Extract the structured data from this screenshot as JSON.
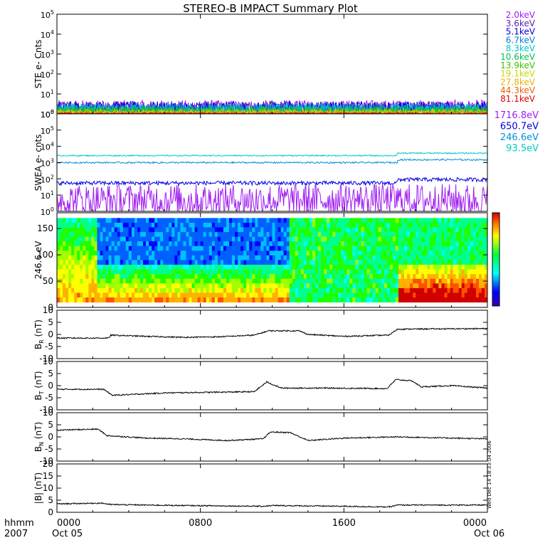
{
  "chart_data": {
    "type": "line",
    "title": "STEREO-B IMPACT Summary Plot",
    "time_axis": {
      "range": [
        "2007-10-05T00:00",
        "2007-10-06T00:00"
      ],
      "ticks": [
        {
          "t": 0,
          "label": "0000"
        },
        {
          "t": 8,
          "label": "0800"
        },
        {
          "t": 16,
          "label": "1600"
        },
        {
          "t": 24,
          "label": "0000"
        }
      ],
      "left_label_1": "hhmm",
      "left_label_2": "2007",
      "start_date": "Oct 05",
      "end_date": "Oct 06"
    },
    "side_label": "Wed Dec 14 18:33:04 2006",
    "panels": [
      {
        "id": "ste",
        "ylabel": "STE e- Cnts",
        "scale": "log",
        "ylim": [
          1,
          100000
        ],
        "y_ticks": [
          1,
          10,
          100,
          1000,
          10000,
          100000
        ],
        "series": [
          {
            "name": "2.0keV",
            "color": "#a020f0",
            "level": 2.2,
            "noise": 0.35
          },
          {
            "name": "3.6keV",
            "color": "#5a1fb0",
            "level": 2.0,
            "noise": 0.35
          },
          {
            "name": "5.1keV",
            "color": "#0000e0",
            "level": 1.9,
            "noise": 0.35
          },
          {
            "name": "6.7keV",
            "color": "#0080e0",
            "level": 1.7,
            "noise": 0.3
          },
          {
            "name": "8.3keV",
            "color": "#00c8c8",
            "level": 1.6,
            "noise": 0.3
          },
          {
            "name": "10.6keV",
            "color": "#00c050",
            "level": 1.45,
            "noise": 0.25
          },
          {
            "name": "13.9keV",
            "color": "#40c000",
            "level": 1.3,
            "noise": 0.2
          },
          {
            "name": "19.1keV",
            "color": "#c8d800",
            "level": 1.2,
            "noise": 0.15
          },
          {
            "name": "27.8keV",
            "color": "#f0b000",
            "level": 1.1,
            "noise": 0.1
          },
          {
            "name": "44.3keV",
            "color": "#f06000",
            "level": 1.05,
            "noise": 0.08
          },
          {
            "name": "81.1keV",
            "color": "#e00000",
            "level": 1.02,
            "noise": 0.05
          }
        ]
      },
      {
        "id": "swea",
        "ylabel": "SWEA e- cnts",
        "scale": "log",
        "ylim": [
          1,
          1000000
        ],
        "y_ticks": [
          1,
          10,
          100,
          1000,
          10000,
          100000,
          1000000
        ],
        "series": [
          {
            "name": "1716.8eV",
            "color": "#a020f0",
            "before": 5,
            "after": 5,
            "noise": 1.0
          },
          {
            "name": "650.7eV",
            "color": "#0000e0",
            "before": 55,
            "after": 90,
            "noise": 0.12
          },
          {
            "name": "246.6eV",
            "color": "#0090e0",
            "before": 1000,
            "after": 1500,
            "noise": 0.05
          },
          {
            "name": "93.5eV",
            "color": "#00c8c8",
            "before": 2700,
            "after": 3800,
            "noise": 0.04
          }
        ],
        "step_time": 19.0
      },
      {
        "id": "pad",
        "type": "heatmap",
        "ylabel": "246.6 eV",
        "ylim": [
          0,
          180
        ],
        "y_ticks": [
          0,
          50,
          100,
          150
        ]
      },
      {
        "id": "br",
        "ylabel": "B_R (nT)",
        "ylim": [
          -10,
          10
        ],
        "y_ticks": [
          -10,
          -5,
          0,
          5,
          10
        ],
        "segments": [
          [
            0,
            -1.5
          ],
          [
            2.9,
            -1.5
          ],
          [
            3.0,
            -0.3
          ],
          [
            5.0,
            -0.8
          ],
          [
            7.0,
            -1.2
          ],
          [
            9.0,
            -1.0
          ],
          [
            11.0,
            -0.3
          ],
          [
            11.8,
            1.5
          ],
          [
            13.5,
            1.5
          ],
          [
            14.0,
            0.0
          ],
          [
            16.0,
            -0.8
          ],
          [
            18.5,
            -0.3
          ],
          [
            19.0,
            2.2
          ],
          [
            24,
            2.4
          ]
        ]
      },
      {
        "id": "bt",
        "ylabel": "B_T (nT)",
        "ylim": [
          -10,
          10
        ],
        "y_ticks": [
          -10,
          -5,
          0,
          5,
          10
        ],
        "segments": [
          [
            0,
            -1.5
          ],
          [
            2.6,
            -1.5
          ],
          [
            3.1,
            -4.0
          ],
          [
            6.0,
            -3.0
          ],
          [
            9.0,
            -2.7
          ],
          [
            11.0,
            -2.5
          ],
          [
            11.7,
            1.5
          ],
          [
            12.5,
            -1.0
          ],
          [
            15.0,
            -1.0
          ],
          [
            18.4,
            -1.2
          ],
          [
            18.9,
            2.5
          ],
          [
            19.8,
            2.0
          ],
          [
            20.3,
            -0.5
          ],
          [
            22,
            0.0
          ],
          [
            24,
            -1.0
          ]
        ]
      },
      {
        "id": "bn",
        "ylabel": "B_N (nT)",
        "ylim": [
          -10,
          10
        ],
        "y_ticks": [
          -10,
          -5,
          0,
          5,
          10
        ],
        "segments": [
          [
            0,
            2.8
          ],
          [
            2.3,
            3.2
          ],
          [
            2.8,
            0.5
          ],
          [
            5.0,
            -0.5
          ],
          [
            7.0,
            -0.8
          ],
          [
            9.5,
            -1.5
          ],
          [
            11.5,
            -0.8
          ],
          [
            11.9,
            2.0
          ],
          [
            13.0,
            1.8
          ],
          [
            14.0,
            -1.5
          ],
          [
            16.0,
            -0.5
          ],
          [
            19.0,
            0.0
          ],
          [
            22.0,
            -0.5
          ],
          [
            24,
            -0.8
          ]
        ]
      },
      {
        "id": "bmag",
        "ylabel": "|B| (nT)",
        "ylim": [
          0,
          20
        ],
        "y_ticks": [
          0,
          5,
          10,
          15,
          20
        ],
        "segments": [
          [
            0,
            3.5
          ],
          [
            2.5,
            3.8
          ],
          [
            3.0,
            3.2
          ],
          [
            7.0,
            2.8
          ],
          [
            11.5,
            2.5
          ],
          [
            12.0,
            2.8
          ],
          [
            16.0,
            2.5
          ],
          [
            18.5,
            2.2
          ],
          [
            19.0,
            3.0
          ],
          [
            24,
            3.0
          ]
        ]
      }
    ]
  }
}
